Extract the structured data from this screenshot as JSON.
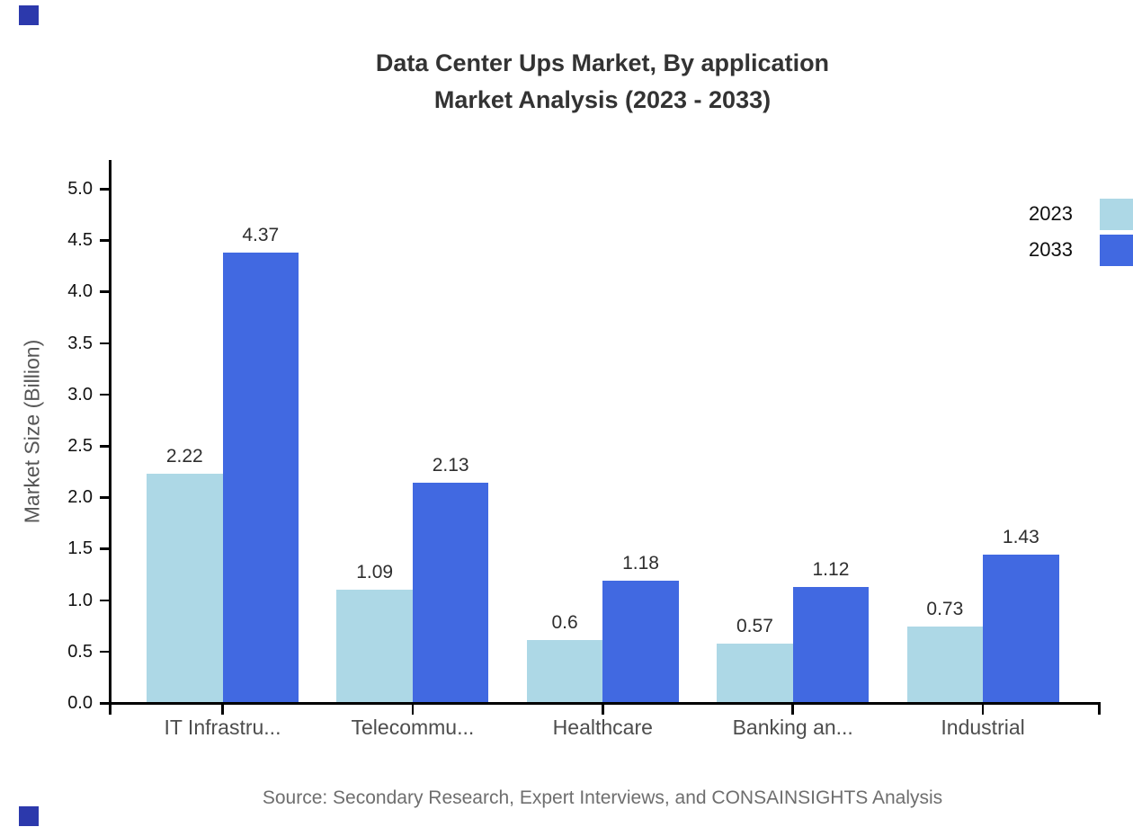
{
  "title": {
    "line1": "Data Center Ups Market, By application",
    "line2": "Market Analysis (2023 - 2033)"
  },
  "footer": {
    "source": "Source: Secondary Research, Expert Interviews, and CONSAINSIGHTS Analysis"
  },
  "decor": {
    "corner_color": "#2c39ac"
  },
  "chart_data": {
    "type": "bar",
    "title": "Data Center Ups Market, By application Market Analysis (2023 - 2033)",
    "categories": [
      "IT Infrastru...",
      "Telecommu...",
      "Healthcare",
      "Banking an...",
      "Industrial"
    ],
    "series": [
      {
        "name": "2023",
        "color": "#ADD8E6",
        "values": [
          2.22,
          1.09,
          0.6,
          0.57,
          0.73
        ]
      },
      {
        "name": "2033",
        "color": "#4169E1",
        "values": [
          4.37,
          2.13,
          1.18,
          1.12,
          1.43
        ]
      }
    ],
    "ylabel": "Market Size (Billion)",
    "xlabel": "",
    "ylim": [
      0,
      5
    ],
    "ytick_labels": [
      "0.0",
      "0.5",
      "1.0",
      "1.5",
      "2.0",
      "2.5",
      "3.0",
      "3.5",
      "4.0",
      "4.5",
      "5.0"
    ],
    "grid": false,
    "legend_position": "top-right",
    "value_labels": true
  }
}
